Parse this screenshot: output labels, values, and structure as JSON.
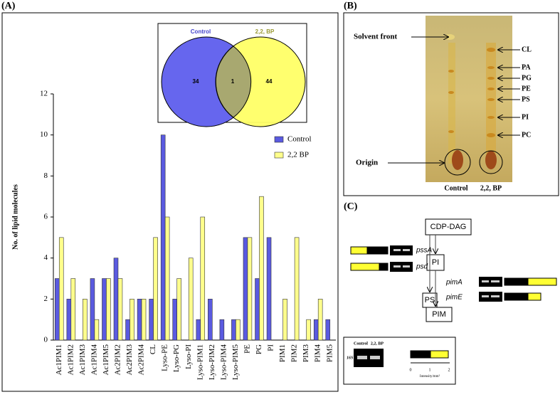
{
  "panels": {
    "a": "(A)",
    "b": "(B)",
    "c": "(C)"
  },
  "chart_data": {
    "type": "bar",
    "ylabel": "No. of lipid molecules",
    "categories": [
      "Ac1PIM1",
      "Ac1PIM2",
      "Ac1PIM3",
      "Ac1PIM4",
      "Ac1PIM5",
      "Ac2PIM2",
      "Ac2PIM3",
      "Ac2PIM4",
      "CL",
      "Lyso-PE",
      "Lyso-PG",
      "Lyso-PI",
      "Lyso-PIM1",
      "Lyso-PIM2",
      "Lyso-PIM4",
      "Lyso-PIM5",
      "PE",
      "PG",
      "PI",
      "PIM1",
      "PIM2",
      "PIM3",
      "PIM4",
      "PIM5"
    ],
    "series": [
      {
        "name": "Control",
        "color": "#5a5ae0",
        "values": [
          3,
          2,
          0,
          3,
          3,
          4,
          1,
          2,
          2,
          10,
          2,
          0,
          1,
          2,
          1,
          1,
          5,
          3,
          5,
          0,
          0,
          0,
          1,
          1
        ]
      },
      {
        "name": "2,2 BP",
        "color": "#ffff8c",
        "values": [
          5,
          3,
          2,
          1,
          3,
          3,
          2,
          2,
          5,
          6,
          3,
          4,
          6,
          0,
          0,
          1,
          5,
          7,
          0,
          2,
          5,
          1,
          2,
          0
        ]
      }
    ],
    "ylim": [
      0,
      12
    ],
    "yticks": [
      0,
      2,
      4,
      6,
      8,
      10,
      12
    ],
    "legend": "right"
  },
  "venn": {
    "sets": [
      {
        "name": "Control",
        "color": "#6666ee"
      },
      {
        "name": "2,2, BP",
        "color": "#ffff66"
      }
    ],
    "only_a": "34",
    "both": "1",
    "only_b": "44"
  },
  "tlc": {
    "solvent_front": "Solvent front",
    "origin": "Origin",
    "bands": [
      "CL",
      "PA",
      "PG",
      "PE",
      "PS",
      "PI",
      "PC"
    ],
    "lanes": [
      "Control",
      "2,2, BP"
    ]
  },
  "pathway": {
    "nodes": [
      "CDP-DAG",
      "PI",
      "PS",
      "PIM"
    ],
    "genes": [
      "pssA",
      "psd",
      "pimA",
      "pimE"
    ],
    "reference": {
      "gene": "16S",
      "lanes": [
        "Control",
        "2,2, BP"
      ],
      "axis_label": "Intensity/mm²",
      "ticks": [
        "0",
        "1",
        "2"
      ]
    }
  }
}
